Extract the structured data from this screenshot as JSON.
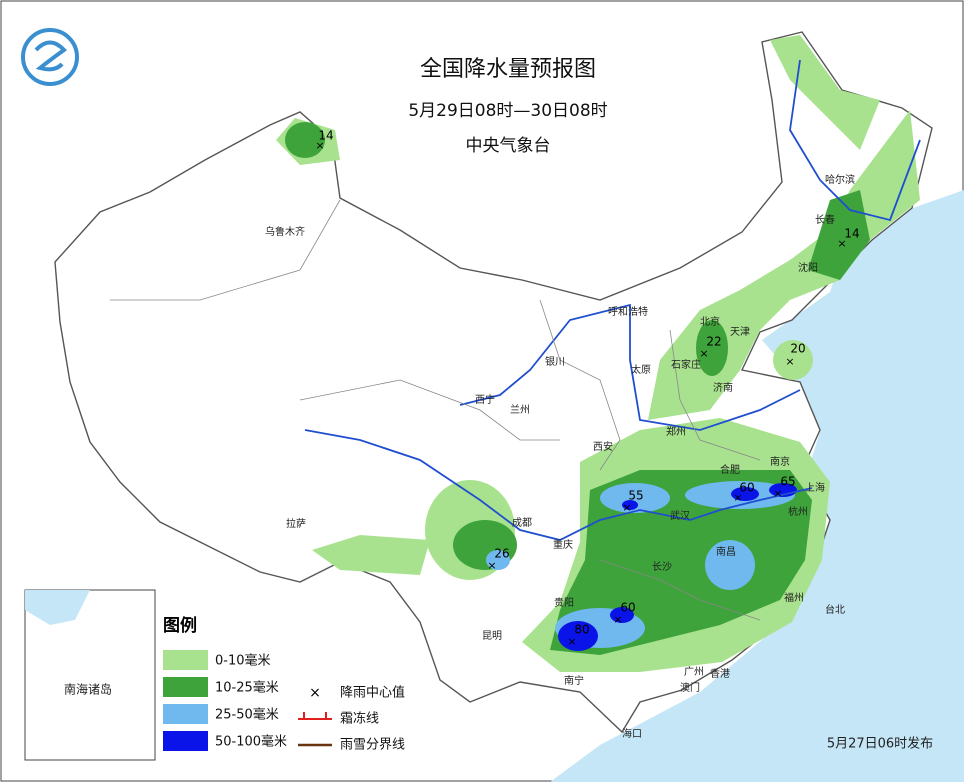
{
  "header": {
    "title": "全国降水量预报图",
    "period": "5月29日08时—30日08时",
    "issuer": "中央气象台"
  },
  "cities": [
    "乌鲁木齐",
    "哈尔滨",
    "长春",
    "沈阳",
    "呼和浩特",
    "北京",
    "天津",
    "石家庄",
    "银川",
    "太原",
    "济南",
    "西宁",
    "兰州",
    "郑州",
    "西安",
    "合肥",
    "南京",
    "上海",
    "成都",
    "武汉",
    "杭州",
    "重庆",
    "南昌",
    "长沙",
    "拉萨",
    "贵阳",
    "福州",
    "台北",
    "昆明",
    "南宁",
    "广州",
    "香港",
    "澳门",
    "海口"
  ],
  "rain_centers": [
    14,
    14,
    22,
    20,
    55,
    60,
    65,
    26,
    80,
    60
  ],
  "legend": {
    "title": "图例",
    "items": [
      "0-10毫米",
      "10-25毫米",
      "25-50毫米",
      "50-100毫米"
    ],
    "symbols": [
      "降雨中心值",
      "霜冻线",
      "雨雪分界线"
    ]
  },
  "inset": {
    "label": "南海诸岛"
  },
  "footer": {
    "issued": "5月27日06时发布"
  }
}
